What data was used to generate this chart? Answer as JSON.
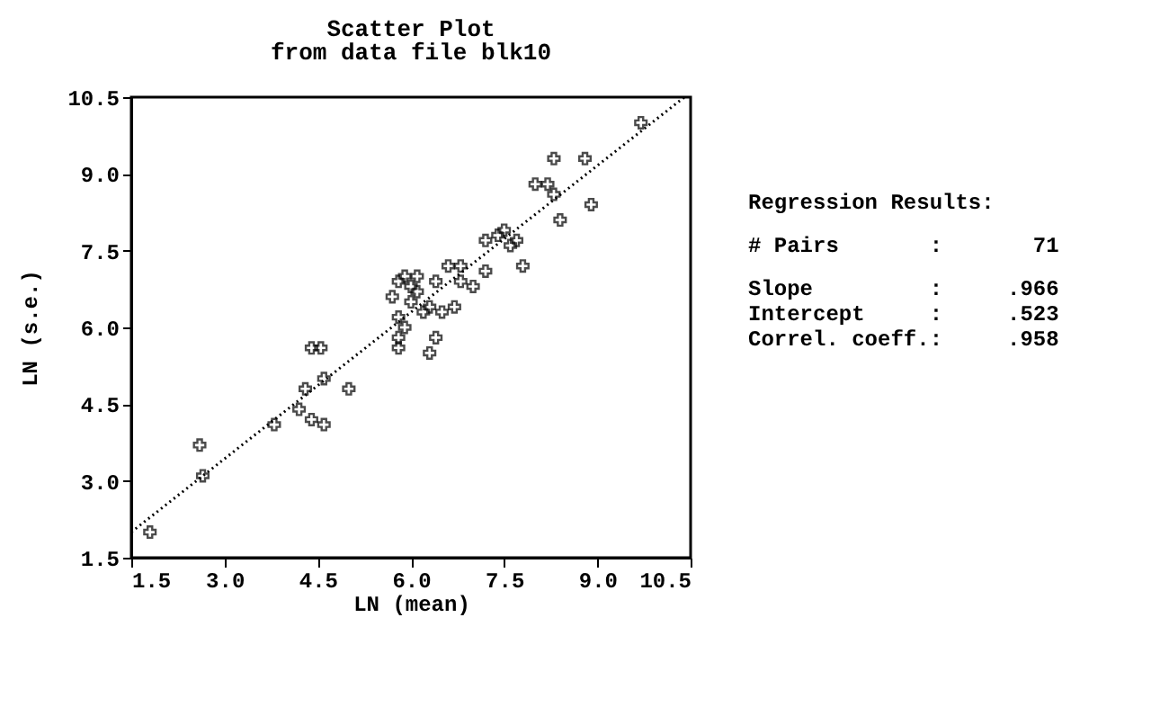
{
  "chart_data": {
    "type": "scatter",
    "title": "Scatter Plot",
    "subtitle": "from data file blk10",
    "xlabel": "LN (mean)",
    "ylabel": "LN (s.e.)",
    "xlim": [
      1.5,
      10.5
    ],
    "ylim": [
      1.5,
      10.5
    ],
    "xticks": [
      1.5,
      {
        "value": 3,
        "label": "3.0"
      },
      4.5,
      {
        "value": 6,
        "label": "6.0"
      },
      7.5,
      {
        "value": 9,
        "label": "9.0"
      },
      10.5
    ],
    "yticks": [
      1.5,
      {
        "value": 3,
        "label": "3.0"
      },
      4.5,
      {
        "value": 6,
        "label": "6.0"
      },
      7.5,
      {
        "value": 9,
        "label": "9.0"
      },
      10.5
    ],
    "grid": false,
    "series": [
      {
        "marker": "cross",
        "color": "#000000",
        "x": [
          1.8,
          2.6,
          2.65,
          3.8,
          4.2,
          4.3,
          4.4,
          4.55,
          4.4,
          4.6,
          4.6,
          5.0,
          5.8,
          5.8,
          5.8,
          5.9,
          5.7,
          5.8,
          5.9,
          6.0,
          6.0,
          6.1,
          6.1,
          6.2,
          6.3,
          6.3,
          6.4,
          6.4,
          6.5,
          6.6,
          6.7,
          6.8,
          6.8,
          7.0,
          7.2,
          7.2,
          7.4,
          7.5,
          7.6,
          7.7,
          7.8,
          8.0,
          8.2,
          8.3,
          8.3,
          8.4,
          8.8,
          8.9,
          9.7
        ],
        "values": [
          2.0,
          3.7,
          3.1,
          4.1,
          4.4,
          4.8,
          5.6,
          5.6,
          4.2,
          4.1,
          5.0,
          4.8,
          5.6,
          5.8,
          6.2,
          6.0,
          6.6,
          6.9,
          7.0,
          6.8,
          6.5,
          6.7,
          7.0,
          6.3,
          5.5,
          6.4,
          5.8,
          6.9,
          6.3,
          7.2,
          6.4,
          6.9,
          7.2,
          6.8,
          7.7,
          7.1,
          7.8,
          7.9,
          7.6,
          7.7,
          7.2,
          8.8,
          8.8,
          8.6,
          9.3,
          8.1,
          9.3,
          8.4,
          10.0
        ]
      },
      {
        "type": "line",
        "color": "#000000",
        "line_style": "dotted",
        "x": [
          1.5,
          10.4
        ],
        "values": [
          2.0,
          10.5
        ]
      }
    ],
    "annotations": [
      "Regression Results:",
      "# Pairs       :       71",
      "Slope         :     .966",
      "Intercept     :     .523",
      "Correl. coeff.:     .958"
    ]
  }
}
